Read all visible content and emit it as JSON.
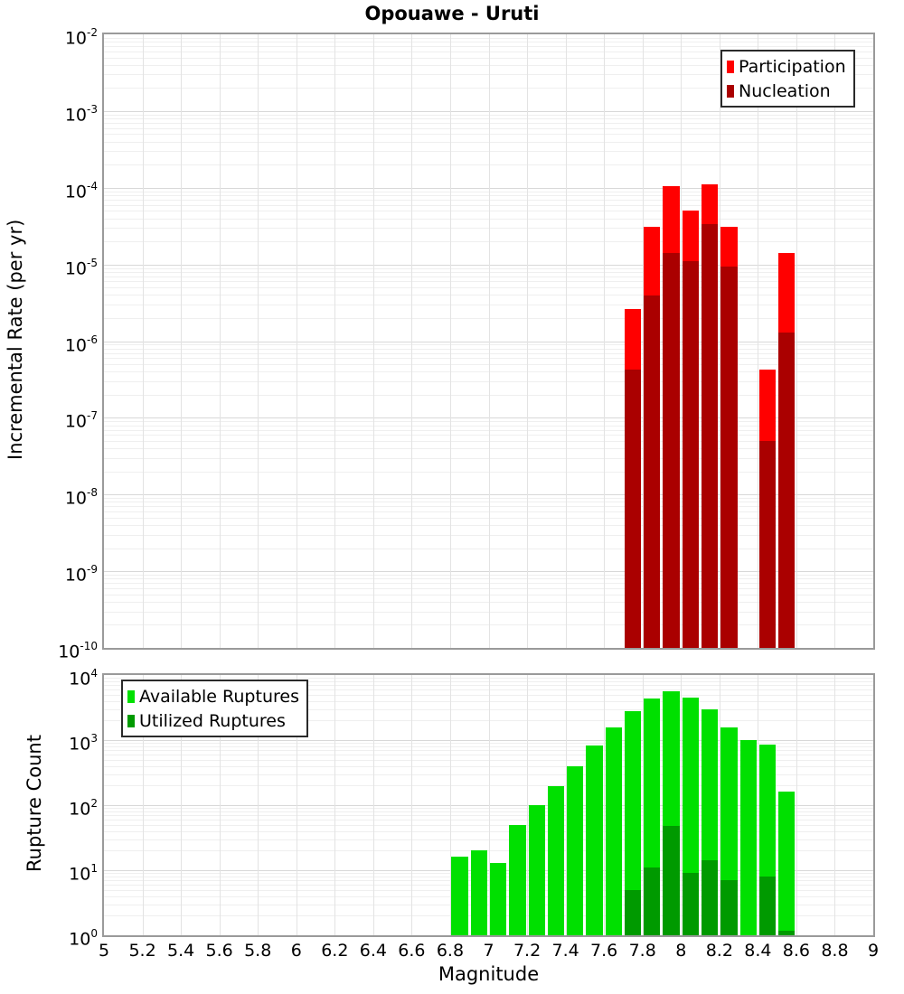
{
  "title": "Opouawe - Uruti",
  "axes": {
    "x": {
      "label": "Magnitude",
      "min": 5,
      "max": 9,
      "tick_step": 0.2
    },
    "top_y": {
      "label": "Incremental Rate (per yr)",
      "min_exp": -10,
      "max_exp": -2
    },
    "bottom_y": {
      "label": "Rupture Count",
      "min_exp": 0,
      "max_exp": 4
    }
  },
  "colors": {
    "participation": "#ff0000",
    "nucleation": "#aa0000",
    "available": "#00e000",
    "utilized": "#009a00",
    "grid_major": "#d8d8d8",
    "grid_minor": "#efefef",
    "grid_vertical": "#e3e3e3",
    "panel_border": "#9a9a9a",
    "legend_border": "#2a2a2a",
    "text": "#000000"
  },
  "chart_data": [
    {
      "type": "bar",
      "panel": "top",
      "title": "Opouawe - Uruti",
      "ylabel": "Incremental Rate (per yr)",
      "y_scale": "log",
      "ylim_exp": [
        -10,
        -2
      ],
      "xlim": [
        5,
        9
      ],
      "grid": true,
      "legend_position": "top-right",
      "bin_width": 0.1,
      "bin_starts": [
        7.7,
        7.8,
        7.9,
        8.0,
        8.1,
        8.2,
        8.4,
        8.5
      ],
      "series": [
        {
          "name": "Participation",
          "color_key": "participation",
          "values": [
            2.6e-06,
            3.1e-05,
            0.000105,
            5.1e-05,
            0.00011,
            3.1e-05,
            4.2e-07,
            1.4e-05
          ]
        },
        {
          "name": "Nucleation",
          "color_key": "nucleation",
          "values": [
            4.2e-07,
            3.9e-06,
            1.4e-05,
            1.1e-05,
            3.4e-05,
            9.5e-06,
            5e-08,
            1.3e-06
          ]
        }
      ]
    },
    {
      "type": "bar",
      "panel": "bottom",
      "xlabel": "Magnitude",
      "ylabel": "Rupture Count",
      "y_scale": "log",
      "ylim_exp": [
        0,
        4
      ],
      "xlim": [
        5,
        9
      ],
      "grid": true,
      "legend_position": "top-left",
      "bin_width": 0.1,
      "bin_starts": [
        6.8,
        6.9,
        7.0,
        7.1,
        7.2,
        7.3,
        7.4,
        7.5,
        7.6,
        7.7,
        7.8,
        7.9,
        8.0,
        8.1,
        8.2,
        8.3,
        8.4,
        8.5
      ],
      "series": [
        {
          "name": "Available Ruptures",
          "color_key": "available",
          "values": [
            16,
            20,
            13,
            49,
            100,
            196,
            400,
            820,
            1560,
            2800,
            4300,
            5700,
            4450,
            3000,
            1580,
            990,
            840,
            160
          ]
        },
        {
          "name": "Utilized Ruptures",
          "color_key": "utilized",
          "values": [
            null,
            null,
            null,
            null,
            null,
            null,
            null,
            null,
            null,
            5,
            11,
            48,
            9,
            14,
            7,
            null,
            8,
            1
          ]
        }
      ]
    }
  ]
}
